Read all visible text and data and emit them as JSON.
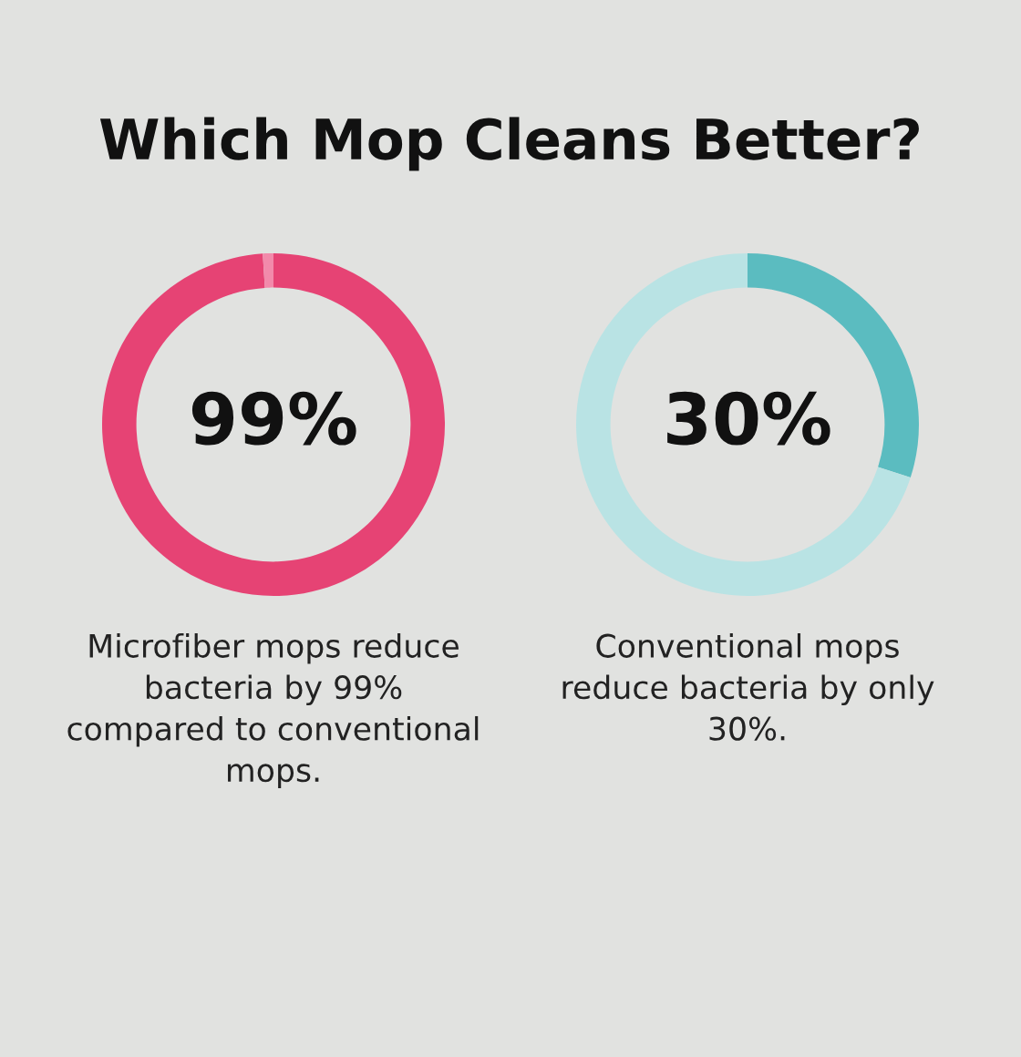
{
  "chart_data": [
    {
      "type": "donut",
      "title": "Which Mop Cleans Better?",
      "categories": [
        null,
        null
      ],
      "values": [
        99,
        1
      ],
      "colors": [
        "#e64374",
        "#f28aab"
      ],
      "value_labels": [
        "99%",
        null
      ],
      "annotations": [
        "Microfiber mops reduce\nbacteria by 99%\ncompared to conventional\nmops."
      ]
    },
    {
      "type": "donut",
      "categories": [
        null,
        null
      ],
      "values": [
        30,
        70
      ],
      "colors": [
        "#5bbcc0",
        "#b9e3e4"
      ],
      "value_labels": [
        "30%",
        null
      ],
      "annotations": [
        "Conventional mops\nreduce bacteria by only\n30%."
      ]
    }
  ]
}
